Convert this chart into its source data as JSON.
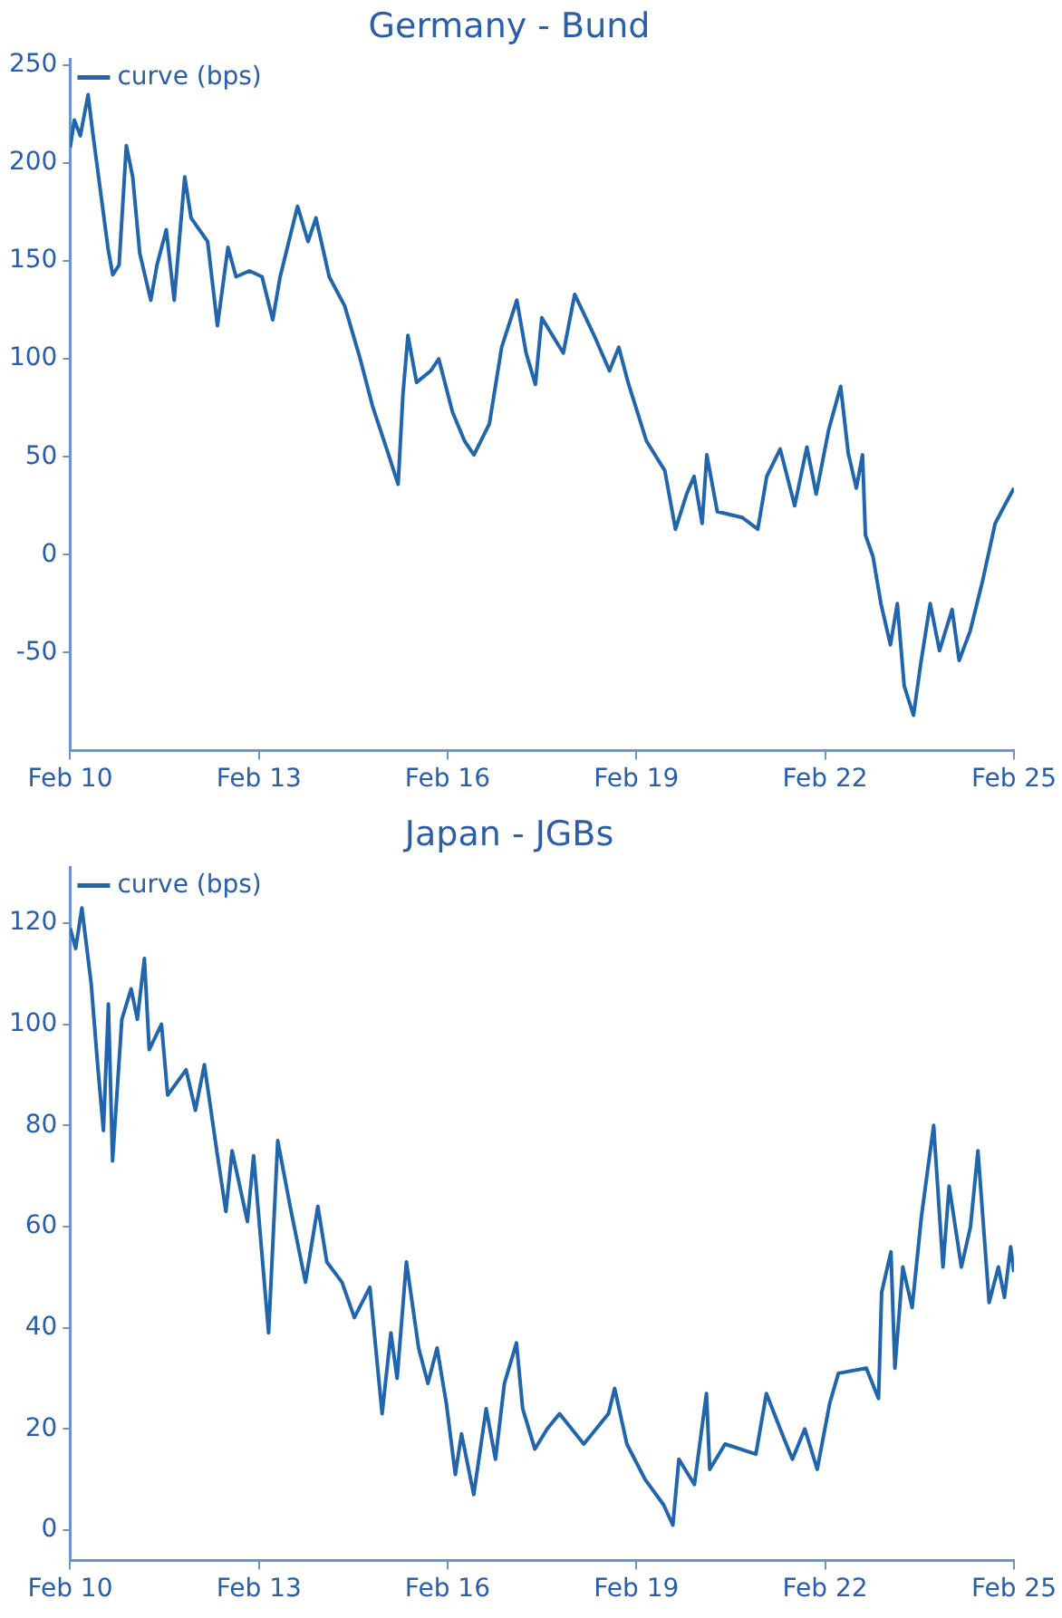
{
  "chart_data": [
    {
      "type": "line",
      "title": "Germany - Bund",
      "legend": "top left",
      "marker": "none",
      "grid": false,
      "x": [
        "2010-02-01",
        "2010-02-25",
        "2010-04-01",
        "2010-05-16",
        "2010-06-10",
        "2010-07-16",
        "2010-09-08",
        "2010-10-06",
        "2010-11-12",
        "2010-12-24",
        "2011-01-30",
        "2011-03-12",
        "2011-05-15",
        "2011-06-20",
        "2011-08-13",
        "2011-09-28",
        "2011-11-28",
        "2012-01-04",
        "2012-04-09",
        "2012-06-05",
        "2012-08-05",
        "2012-09-21",
        "2012-12-08",
        "2013-02-19",
        "2013-04-22",
        "2013-06-04",
        "2013-09-13",
        "2013-11-13",
        "2013-12-29",
        "2014-03-16",
        "2014-06-14",
        "2014-09-12",
        "2014-11-22",
        "2015-02-20",
        "2015-04-20",
        "2015-05-18",
        "2015-06-16",
        "2015-08-05",
        "2015-10-27",
        "2015-12-12",
        "2016-02-29",
        "2016-05-10",
        "2016-07-03",
        "2016-10-01",
        "2016-12-11",
        "2017-03-09",
        "2017-05-02",
        "2017-06-25",
        "2017-08-01",
        "2017-12-04",
        "2018-02-08",
        "2018-06-01",
        "2018-08-29",
        "2018-10-22",
        "2018-12-15",
        "2019-04-01",
        "2019-07-16",
        "2019-09-16",
        "2019-11-20",
        "2020-01-02",
        "2020-02-18",
        "2020-03-16",
        "2020-05-16",
        "2020-10-08",
        "2021-01-06",
        "2021-02-27",
        "2021-05-16",
        "2021-08-08",
        "2021-10-18",
        "2021-12-11",
        "2022-02-22",
        "2022-05-02",
        "2022-06-15",
        "2022-08-01",
        "2022-09-06",
        "2022-09-23",
        "2022-11-06",
        "2022-12-22",
        "2023-02-15",
        "2023-03-27",
        "2023-05-06",
        "2023-06-29",
        "2023-08-11",
        "2023-10-04",
        "2023-11-27",
        "2024-02-08",
        "2024-03-20",
        "2024-05-23",
        "2024-08-04",
        "2024-10-15",
        "2024-12-08",
        "2025-02-01"
      ],
      "series": [
        {
          "name": "curve (bps)",
          "color": "#2166ac",
          "values": [
            208,
            222,
            214,
            235,
            217,
            193,
            157,
            143,
            148,
            209,
            193,
            154,
            130,
            148,
            166,
            130,
            193,
            172,
            160,
            117,
            157,
            142,
            145,
            142,
            120,
            142,
            178,
            160,
            172,
            142,
            127,
            100,
            76,
            52,
            36,
            82,
            112,
            88,
            94,
            100,
            73,
            58,
            51,
            67,
            106,
            130,
            103,
            87,
            121,
            103,
            133,
            112,
            94,
            106,
            88,
            58,
            43,
            13,
            31,
            40,
            16,
            51,
            22,
            19,
            13,
            40,
            54,
            25,
            55,
            31,
            64,
            86,
            52,
            34,
            51,
            10,
            -1,
            -25,
            -46,
            -25,
            -67,
            -82,
            -55,
            -25,
            -49,
            -28,
            -54,
            -39,
            -13,
            16,
            25,
            34
          ]
        }
      ],
      "xlim": [
        "2010-02-01",
        "2025-02-01"
      ],
      "xticks": [
        {
          "value": "2010-02-01",
          "label": "Feb 10"
        },
        {
          "value": "2013-02-01",
          "label": "Feb 13"
        },
        {
          "value": "2016-02-01",
          "label": "Feb 16"
        },
        {
          "value": "2019-02-01",
          "label": "Feb 19"
        },
        {
          "value": "2022-02-01",
          "label": "Feb 22"
        },
        {
          "value": "2025-02-01",
          "label": "Feb 25"
        }
      ],
      "ylim": [
        -100,
        253
      ],
      "yticks": [
        -50,
        0,
        50,
        100,
        150,
        200,
        250
      ]
    },
    {
      "type": "line",
      "title": "Japan - JGBs",
      "legend": "top left",
      "marker": "none",
      "grid": false,
      "x": [
        "2010-02-01",
        "2010-03-05",
        "2010-04-10",
        "2010-06-03",
        "2010-07-08",
        "2010-08-13",
        "2010-09-11",
        "2010-10-05",
        "2010-11-28",
        "2011-01-21",
        "2011-02-26",
        "2011-04-08",
        "2011-05-06",
        "2011-07-16",
        "2011-08-21",
        "2011-12-06",
        "2012-01-29",
        "2012-03-21",
        "2012-06-01",
        "2012-07-24",
        "2012-08-29",
        "2012-11-26",
        "2013-01-01",
        "2013-03-29",
        "2013-05-21",
        "2013-08-01",
        "2013-10-29",
        "2014-01-09",
        "2014-03-02",
        "2014-05-29",
        "2014-08-09",
        "2014-11-07",
        "2015-01-17",
        "2015-03-09",
        "2015-04-14",
        "2015-06-07",
        "2015-08-17",
        "2015-10-10",
        "2015-12-02",
        "2016-01-25",
        "2016-03-17",
        "2016-04-22",
        "2016-07-02",
        "2016-09-12",
        "2016-11-05",
        "2016-12-27",
        "2017-03-07",
        "2017-04-12",
        "2017-06-22",
        "2017-09-01",
        "2017-11-12",
        "2018-04-02",
        "2018-08-23",
        "2018-09-28",
        "2018-12-08",
        "2019-03-24",
        "2019-07-09",
        "2019-09-01",
        "2019-10-06",
        "2020-01-04",
        "2020-03-14",
        "2020-04-02",
        "2020-06-30",
        "2020-12-26",
        "2021-02-25",
        "2021-05-16",
        "2021-07-26",
        "2021-10-06",
        "2021-12-17",
        "2022-02-27",
        "2022-04-19",
        "2022-09-28",
        "2022-12-08",
        "2022-12-26",
        "2023-02-18",
        "2023-03-13",
        "2023-04-28",
        "2023-06-21",
        "2023-08-14",
        "2023-10-24",
        "2023-12-17",
        "2024-01-22",
        "2024-04-02",
        "2024-05-25",
        "2024-07-07",
        "2024-09-10",
        "2024-11-03",
        "2024-12-08",
        "2025-01-13",
        "2025-02-01"
      ],
      "series": [
        {
          "name": "curve (bps)",
          "color": "#2166ac",
          "values": [
            119,
            115,
            123,
            108,
            93,
            79,
            104,
            73,
            101,
            107,
            101,
            113,
            95,
            100,
            86,
            91,
            83,
            92,
            75,
            63,
            75,
            61,
            74,
            39,
            77,
            64,
            49,
            64,
            53,
            49,
            42,
            48,
            23,
            39,
            30,
            53,
            36,
            29,
            36,
            25,
            11,
            19,
            7,
            24,
            14,
            29,
            37,
            24,
            16,
            20,
            23,
            17,
            23,
            28,
            17,
            10,
            5,
            1,
            14,
            9,
            27,
            12,
            17,
            15,
            27,
            20,
            14,
            20,
            12,
            25,
            31,
            32,
            26,
            47,
            55,
            32,
            52,
            44,
            62,
            80,
            52,
            68,
            52,
            60,
            75,
            45,
            52,
            46,
            56,
            51
          ]
        }
      ],
      "xlim": [
        "2010-02-01",
        "2025-02-01"
      ],
      "xticks": [
        {
          "value": "2010-02-01",
          "label": "Feb 10"
        },
        {
          "value": "2013-02-01",
          "label": "Feb 13"
        },
        {
          "value": "2016-02-01",
          "label": "Feb 16"
        },
        {
          "value": "2019-02-01",
          "label": "Feb 19"
        },
        {
          "value": "2022-02-01",
          "label": "Feb 22"
        },
        {
          "value": "2025-02-01",
          "label": "Feb 25"
        }
      ],
      "ylim": [
        -6,
        131
      ],
      "yticks": [
        0,
        20,
        40,
        60,
        80,
        100,
        120
      ]
    }
  ]
}
